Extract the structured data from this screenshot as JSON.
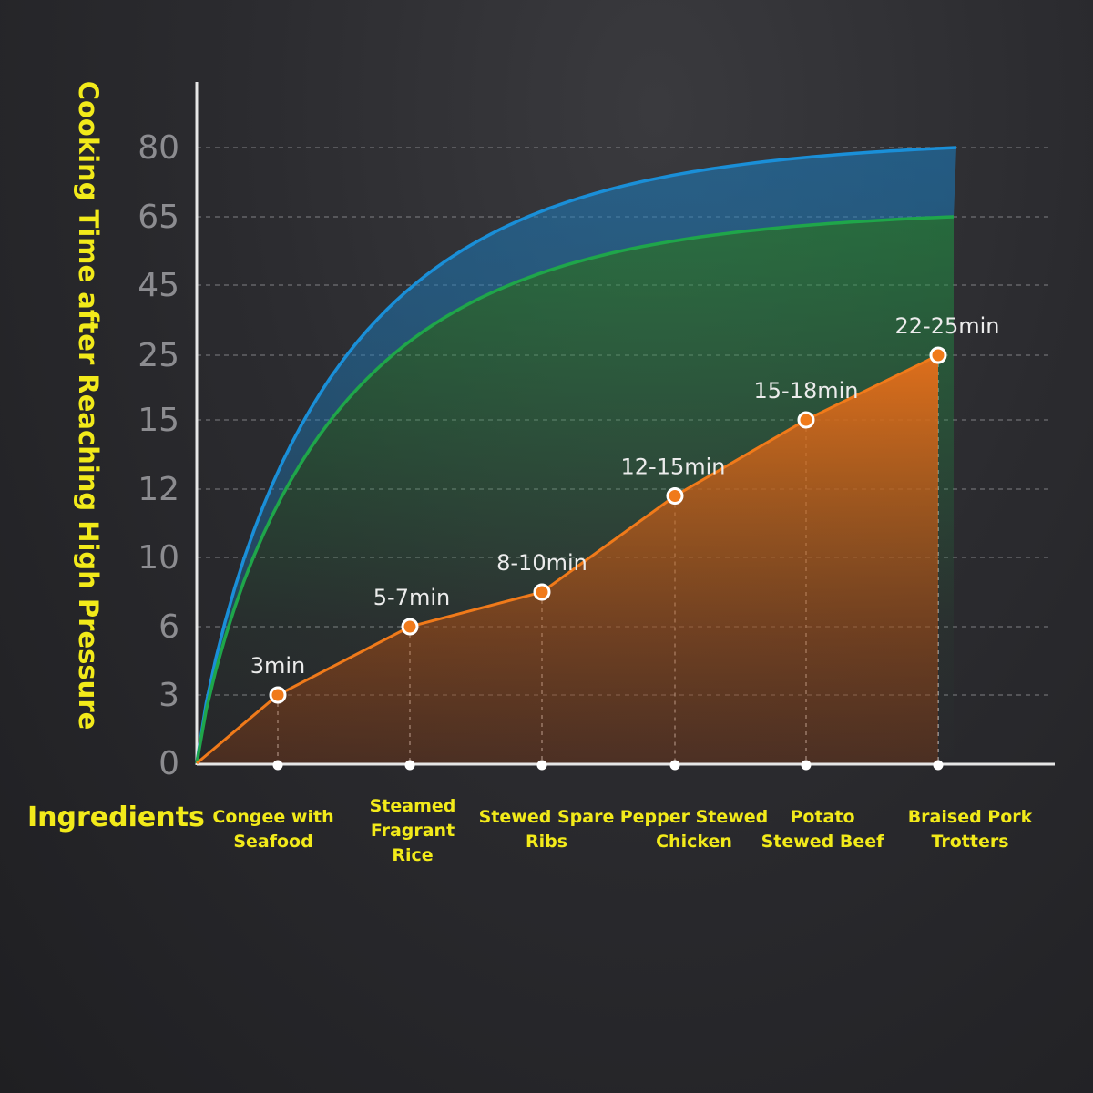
{
  "chart_data": {
    "type": "area",
    "ylabel": "Cooking Time after Reaching High Pressure",
    "xlabel": "Ingredients",
    "y_ticks": [
      "0",
      "3",
      "6",
      "10",
      "12",
      "15",
      "25",
      "45",
      "65",
      "80"
    ],
    "categories": [
      [
        "Congee with",
        "Seafood"
      ],
      [
        "Steamed",
        "Fragrant",
        "Rice"
      ],
      [
        "Stewed Spare",
        "Ribs"
      ],
      [
        "Pepper Stewed",
        "Chicken"
      ],
      [
        "Potato",
        "Stewed Beef"
      ],
      [
        "Braised Pork",
        "Trotters"
      ]
    ],
    "points": [
      {
        "label": "3min",
        "y": 3
      },
      {
        "label": "5-7min",
        "y": 6
      },
      {
        "label": "8-10min",
        "y": 8
      },
      {
        "label": "12-15min",
        "y": 11.8
      },
      {
        "label": "15-18min",
        "y": 15
      },
      {
        "label": "22-25min",
        "y": 25
      }
    ],
    "curves": [
      {
        "color": "#1a8fd8",
        "plateau": 80
      },
      {
        "color": "#1fa64a",
        "plateau": 65
      }
    ],
    "line_color": "#f07a1a",
    "label_color": "#f2ea1a",
    "grid": true
  }
}
